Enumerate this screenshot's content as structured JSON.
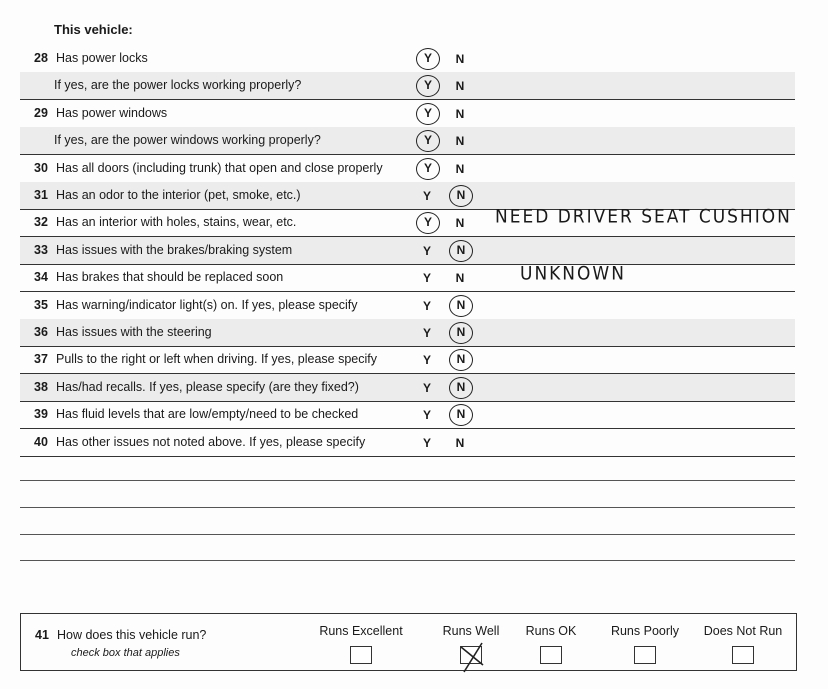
{
  "title": "This vehicle:",
  "questions": [
    {
      "num": "28",
      "text": "Has power locks",
      "answer": "Y"
    },
    {
      "num": "",
      "text": "If yes, are the power locks working properly?",
      "answer": "Y"
    },
    {
      "num": "29",
      "text": "Has power windows",
      "answer": "Y"
    },
    {
      "num": "",
      "text": "If yes, are the power windows working properly?",
      "answer": "Y"
    },
    {
      "num": "30",
      "text": "Has all doors (including trunk) that open and close properly",
      "answer": "Y"
    },
    {
      "num": "31",
      "text": "Has an odor to the interior (pet, smoke, etc.)",
      "answer": "N"
    },
    {
      "num": "32",
      "text": "Has an interior with holes, stains, wear, etc.",
      "answer": "Y",
      "note": "NEED DRIVER SEAT CUSHION"
    },
    {
      "num": "33",
      "text": "Has issues with the brakes/braking system",
      "answer": "N"
    },
    {
      "num": "34",
      "text": "Has brakes that should be replaced soon",
      "answer": "",
      "note": "UNKNOWN"
    },
    {
      "num": "35",
      "text": "Has warning/indicator light(s) on.  If yes, please specify",
      "answer": "N"
    },
    {
      "num": "36",
      "text": "Has issues with the steering",
      "answer": "N"
    },
    {
      "num": "37",
      "text": "Pulls to the right or left when driving.  If yes, please specify",
      "answer": "N"
    },
    {
      "num": "38",
      "text": "Has/had recalls.  If yes, please specify (are they fixed?)",
      "answer": "N"
    },
    {
      "num": "39",
      "text": "Has fluid levels that are low/empty/need to be checked",
      "answer": "N"
    },
    {
      "num": "40",
      "text": "Has other issues not noted above.  If yes, please specify",
      "answer": ""
    }
  ],
  "yes_label": "Y",
  "no_label": "N",
  "q41": {
    "num": "41",
    "text": "How does this vehicle run?",
    "sub": "check box that applies",
    "options": [
      {
        "label": "Runs Excellent",
        "checked": false
      },
      {
        "label": "Runs Well",
        "checked": true
      },
      {
        "label": "Runs OK",
        "checked": false
      },
      {
        "label": "Runs Poorly",
        "checked": false
      },
      {
        "label": "Does Not Run",
        "checked": false
      }
    ]
  }
}
